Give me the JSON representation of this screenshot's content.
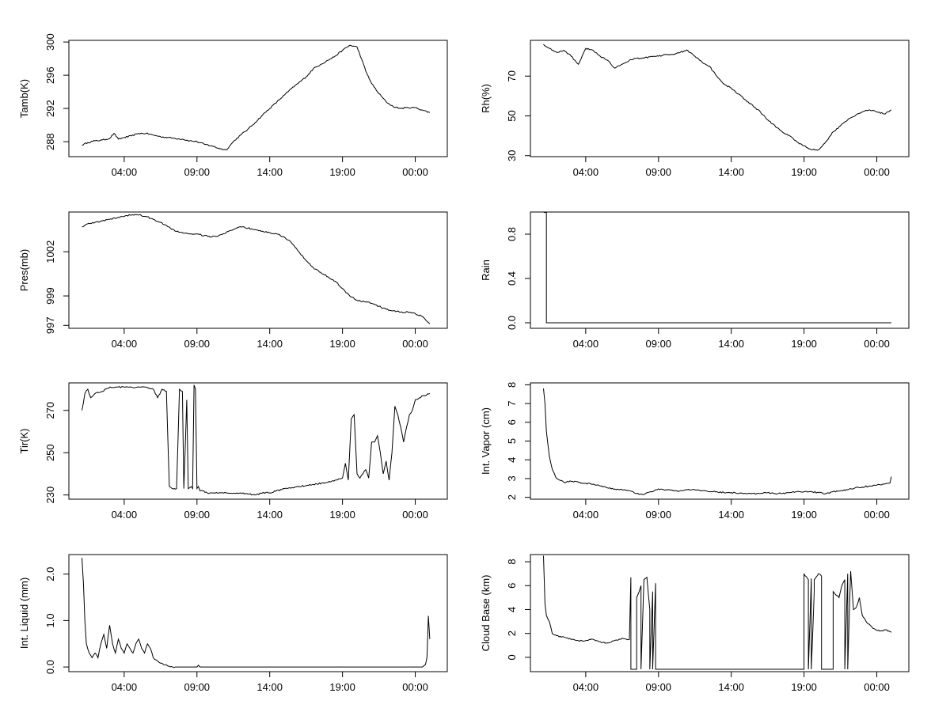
{
  "x_tick_labels": [
    "04:00",
    "09:00",
    "14:00",
    "19:00",
    "00:00"
  ],
  "chart_data": [
    {
      "type": "line",
      "ylabel": "Tamb(K)",
      "yticks": [
        288,
        292,
        296,
        300
      ],
      "ylim": [
        286.2,
        300.2
      ],
      "xlim": [
        -0.8,
        25.2
      ],
      "series": [
        {
          "x": [
            0.1,
            0.5,
            1,
            1.5,
            2,
            2.3,
            2.6,
            3,
            3.5,
            4,
            4.5,
            5,
            5.5,
            6,
            6.5,
            7,
            7.5,
            8,
            8.5,
            9,
            9.5,
            10,
            10.5,
            11,
            11.5,
            12,
            12.5,
            13,
            13.5,
            14,
            14.5,
            15,
            15.5,
            16,
            16.5,
            17,
            17.5,
            18,
            18.5,
            19,
            19.3,
            19.6,
            20,
            20.5,
            21,
            21.5,
            22,
            22.5,
            23,
            23.5,
            24
          ],
          "y": [
            287.6,
            287.9,
            288.1,
            288.2,
            288.4,
            289.0,
            288.3,
            288.5,
            288.7,
            289.0,
            289.0,
            288.8,
            288.6,
            288.5,
            288.4,
            288.3,
            288.1,
            288.0,
            287.7,
            287.5,
            287.2,
            287.0,
            288.0,
            288.8,
            289.5,
            290.3,
            291.2,
            292.0,
            292.8,
            293.6,
            294.4,
            295.1,
            295.8,
            296.8,
            297.3,
            297.8,
            298.3,
            299.0,
            299.6,
            299.4,
            298.0,
            296.5,
            295.0,
            293.8,
            292.8,
            292.2,
            292.0,
            292.1,
            292.1,
            291.8,
            291.5
          ]
        }
      ]
    },
    {
      "type": "line",
      "ylabel": "Rh(%)",
      "yticks": [
        30,
        50,
        70
      ],
      "ylim": [
        29.5,
        88
      ],
      "xlim": [
        -0.8,
        25.2
      ],
      "series": [
        {
          "x": [
            0.1,
            0.5,
            1,
            1.5,
            2,
            2.5,
            3,
            3.5,
            4,
            4.5,
            5,
            5.5,
            6,
            6.5,
            7,
            7.5,
            8,
            8.5,
            9,
            9.5,
            10,
            10.5,
            11,
            11.5,
            12,
            12.5,
            13,
            13.5,
            14,
            14.5,
            15,
            15.5,
            16,
            16.5,
            17,
            17.5,
            18,
            18.5,
            19,
            19.5,
            20,
            20.5,
            21,
            21.5,
            22,
            22.5,
            23,
            23.5,
            24
          ],
          "y": [
            86,
            84,
            82,
            83,
            80,
            76,
            84,
            83,
            80,
            78,
            74,
            76,
            78,
            79,
            79,
            80,
            80,
            81,
            81,
            82,
            83,
            80,
            77,
            75,
            70,
            66,
            64,
            61,
            58,
            55,
            52,
            48,
            45,
            42,
            40,
            37,
            35,
            33,
            33,
            37,
            42,
            45,
            48,
            50,
            52,
            53,
            52,
            51,
            53
          ]
        }
      ]
    },
    {
      "type": "line",
      "ylabel": "Pres(mb)",
      "yticks": [
        997,
        999,
        1002
      ],
      "ylim": [
        996.8,
        1004.7
      ],
      "xlim": [
        -0.8,
        25.2
      ],
      "series": [
        {
          "x": [
            0.1,
            0.5,
            1,
            1.5,
            2,
            2.5,
            3,
            3.5,
            4,
            4.5,
            5,
            5.5,
            6,
            6.5,
            7,
            7.5,
            8,
            8.5,
            9,
            9.5,
            10,
            10.5,
            11,
            11.5,
            12,
            12.5,
            13,
            13.5,
            14,
            14.5,
            15,
            15.5,
            16,
            16.5,
            17,
            17.5,
            18,
            18.5,
            19,
            19.5,
            20,
            20.5,
            21,
            21.5,
            22,
            22.5,
            23,
            23.5,
            24
          ],
          "y": [
            1003.7,
            1003.9,
            1004.0,
            1004.1,
            1004.2,
            1004.3,
            1004.4,
            1004.5,
            1004.5,
            1004.4,
            1004.2,
            1004.0,
            1003.7,
            1003.4,
            1003.3,
            1003.2,
            1003.2,
            1003.1,
            1003.0,
            1003.1,
            1003.3,
            1003.5,
            1003.7,
            1003.6,
            1003.5,
            1003.4,
            1003.3,
            1003.2,
            1003.0,
            1002.6,
            1002.0,
            1001.4,
            1000.9,
            1000.6,
            1000.3,
            1000.0,
            999.5,
            999.0,
            998.7,
            998.6,
            998.5,
            998.3,
            998.1,
            998.0,
            997.9,
            997.9,
            997.8,
            997.6,
            997.1
          ]
        }
      ]
    },
    {
      "type": "line",
      "ylabel": "Rain",
      "yticks": [
        0.0,
        0.4,
        0.8
      ],
      "yticklabels": [
        "0.0",
        "0.4",
        "0.8"
      ],
      "ylim": [
        -0.05,
        1.0
      ],
      "xlim": [
        -0.8,
        25.2
      ],
      "series": [
        {
          "x": [
            0.1,
            0.3,
            0.3,
            24
          ],
          "y": [
            1.0,
            1.0,
            0.0,
            0.0
          ]
        }
      ]
    },
    {
      "type": "line",
      "ylabel": "Tir(K)",
      "yticks": [
        230,
        250,
        270
      ],
      "ylim": [
        228,
        283
      ],
      "xlim": [
        -0.8,
        25.2
      ],
      "series": [
        {
          "x": [
            0.1,
            0.3,
            0.5,
            0.7,
            1,
            1.5,
            2,
            2.5,
            3,
            3.5,
            4,
            4.5,
            5,
            5.3,
            5.6,
            5.9,
            6.1,
            6.3,
            6.6,
            6.8,
            7.0,
            7.1,
            7.3,
            7.4,
            7.6,
            7.7,
            7.8,
            7.9,
            8.0,
            8.1,
            8.2,
            8.4,
            8.7,
            9,
            9.5,
            10,
            11,
            12,
            12.5,
            13,
            14,
            15,
            16,
            17,
            17.5,
            18,
            18.2,
            18.4,
            18.6,
            18.8,
            19.0,
            19.2,
            19.4,
            19.6,
            19.8,
            20,
            20.2,
            20.4,
            20.6,
            20.8,
            21,
            21.2,
            21.4,
            21.6,
            21.8,
            22,
            22.2,
            22.4,
            22.6,
            22.8,
            23,
            23.3,
            23.6,
            24
          ],
          "y": [
            270,
            278,
            280,
            276,
            278,
            279,
            281,
            281,
            281,
            281,
            281,
            281,
            280,
            276,
            280,
            279,
            234,
            233,
            233,
            280,
            279,
            233,
            275,
            233,
            234,
            233,
            282,
            280,
            233,
            234,
            232,
            232,
            231,
            231,
            231,
            231,
            231,
            230,
            231,
            231,
            233,
            234,
            235,
            236,
            237,
            238,
            245,
            237,
            266,
            268,
            240,
            238,
            240,
            242,
            238,
            255,
            255,
            258,
            250,
            240,
            246,
            237,
            250,
            272,
            268,
            262,
            255,
            262,
            268,
            270,
            275,
            276,
            277,
            278
          ]
        }
      ]
    },
    {
      "type": "line",
      "ylabel": "Int. Vapor (cm)",
      "yticks": [
        2,
        3,
        4,
        5,
        6,
        7,
        8
      ],
      "ylim": [
        1.9,
        8.1
      ],
      "xlim": [
        -0.8,
        25.2
      ],
      "series": [
        {
          "x": [
            0.1,
            0.2,
            0.3,
            0.5,
            0.7,
            1,
            1.5,
            2,
            2.5,
            3,
            3.5,
            4,
            4.5,
            5,
            5.5,
            6,
            6.5,
            7,
            7.5,
            8,
            8.5,
            9,
            9.5,
            10,
            10.5,
            11,
            11.5,
            12,
            12.5,
            13,
            13.5,
            14,
            14.5,
            15,
            15.5,
            16,
            16.5,
            17,
            17.5,
            18,
            18.5,
            19,
            19.5,
            20,
            20.5,
            21,
            21.5,
            22,
            22.5,
            23,
            23.5,
            23.9,
            24
          ],
          "y": [
            7.8,
            7.0,
            5.5,
            4.2,
            3.5,
            3.0,
            2.8,
            2.85,
            2.8,
            2.75,
            2.7,
            2.6,
            2.5,
            2.45,
            2.4,
            2.35,
            2.2,
            2.15,
            2.3,
            2.45,
            2.4,
            2.35,
            2.35,
            2.4,
            2.4,
            2.35,
            2.3,
            2.3,
            2.25,
            2.25,
            2.2,
            2.2,
            2.2,
            2.2,
            2.25,
            2.2,
            2.2,
            2.25,
            2.3,
            2.3,
            2.3,
            2.25,
            2.2,
            2.3,
            2.35,
            2.4,
            2.5,
            2.55,
            2.6,
            2.65,
            2.7,
            2.75,
            3.1
          ]
        }
      ]
    },
    {
      "type": "line",
      "ylabel": "Int. Liquid (mm)",
      "yticks": [
        0.0,
        1.0,
        2.0
      ],
      "yticklabels": [
        "0.0",
        "1.0",
        "2.0"
      ],
      "ylim": [
        -0.1,
        2.42
      ],
      "xlim": [
        -0.8,
        25.2
      ],
      "series": [
        {
          "x": [
            0.1,
            0.2,
            0.3,
            0.4,
            0.6,
            0.8,
            1,
            1.2,
            1.4,
            1.6,
            1.8,
            2,
            2.2,
            2.4,
            2.6,
            2.8,
            3,
            3.2,
            3.4,
            3.6,
            3.8,
            4,
            4.2,
            4.4,
            4.6,
            4.8,
            5,
            5.2,
            5.4,
            5.6,
            5.8,
            6,
            6.5,
            7,
            8,
            8.1,
            8.2,
            9,
            10,
            12,
            14,
            16,
            18,
            20,
            22,
            23,
            23.5,
            23.7,
            23.8,
            23.9,
            24
          ],
          "y": [
            2.35,
            1.8,
            1.0,
            0.5,
            0.3,
            0.2,
            0.3,
            0.2,
            0.5,
            0.7,
            0.4,
            0.9,
            0.5,
            0.3,
            0.6,
            0.4,
            0.3,
            0.5,
            0.4,
            0.3,
            0.5,
            0.6,
            0.4,
            0.3,
            0.5,
            0.4,
            0.2,
            0.15,
            0.1,
            0.08,
            0.05,
            0.02,
            0.0,
            0.0,
            0.0,
            0.04,
            0.0,
            0.0,
            0.0,
            0.0,
            0.0,
            0.0,
            0.0,
            0.0,
            0.0,
            0.0,
            0.0,
            0.05,
            0.2,
            1.1,
            0.6
          ]
        }
      ]
    },
    {
      "type": "line",
      "ylabel": "Cloud Base (km)",
      "yticks": [
        0,
        2,
        4,
        6,
        8
      ],
      "ylim": [
        -1.2,
        8.6
      ],
      "xlim": [
        -0.8,
        25.2
      ],
      "series": [
        {
          "x": [
            0.1,
            0.2,
            0.3,
            0.5,
            0.7,
            1,
            1.5,
            2,
            2.5,
            3,
            3.5,
            4,
            4.5,
            5,
            5.5,
            6,
            6.1,
            6.1,
            6.5,
            6.5,
            6.8,
            6.8,
            7.0,
            7.2,
            7.4,
            7.4,
            7.6,
            7.6,
            7.8,
            7.8,
            8.0,
            8.2,
            8.4,
            8.4,
            18.0,
            18.0,
            18.3,
            18.3,
            18.5,
            18.5,
            18.7,
            18.7,
            19.0,
            19.2,
            19.2,
            20.0,
            20.0,
            20.4,
            20.6,
            20.8,
            20.8,
            21.0,
            21.0,
            21.2,
            21.4,
            21.6,
            21.8,
            22,
            22.4,
            22.8,
            23.2,
            23.6,
            24
          ],
          "y": [
            8.5,
            4.5,
            3.5,
            3.0,
            2.0,
            1.8,
            1.7,
            1.5,
            1.4,
            1.4,
            1.5,
            1.3,
            1.2,
            1.4,
            1.6,
            1.5,
            6.7,
            -1.0,
            -1.0,
            5.0,
            6.0,
            -1.0,
            6.5,
            6.7,
            4.0,
            -1.0,
            5.5,
            -1.0,
            6.2,
            -1.0,
            -1.0,
            -1.0,
            -1.0,
            -1.0,
            -1.0,
            7.0,
            6.5,
            -1.0,
            6.6,
            -1.0,
            5.5,
            6.5,
            7.0,
            6.8,
            -1.0,
            -1.0,
            5.5,
            5.0,
            6.0,
            6.5,
            -1.0,
            7.0,
            -1.0,
            7.2,
            4.0,
            4.2,
            5.0,
            3.5,
            2.8,
            2.4,
            2.2,
            2.3,
            2.1
          ]
        }
      ]
    }
  ]
}
